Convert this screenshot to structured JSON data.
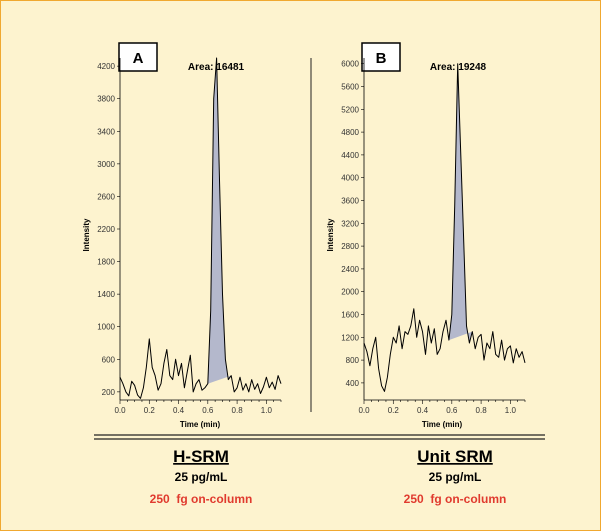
{
  "chart_data": [
    {
      "type": "line",
      "panel_label": "A",
      "annotation": "Area: 16481",
      "xlabel": "Time (min)",
      "ylabel": "Intensity",
      "xlim": [
        0,
        1.1
      ],
      "ylim": [
        100,
        4300
      ],
      "xticks": [
        "0.0",
        "0.2",
        "0.4",
        "0.6",
        "0.8",
        "1.0"
      ],
      "yticks": [
        "200",
        "600",
        "1000",
        "1400",
        "1800",
        "2200",
        "2600",
        "3000",
        "3400",
        "3800",
        "4200"
      ],
      "peak_color": "#b4b8cc",
      "x": [
        0.0,
        0.02,
        0.04,
        0.06,
        0.08,
        0.1,
        0.12,
        0.14,
        0.16,
        0.18,
        0.2,
        0.22,
        0.24,
        0.26,
        0.28,
        0.3,
        0.32,
        0.34,
        0.36,
        0.38,
        0.4,
        0.42,
        0.44,
        0.46,
        0.48,
        0.5,
        0.52,
        0.54,
        0.56,
        0.58,
        0.6,
        0.62,
        0.64,
        0.66,
        0.68,
        0.7,
        0.72,
        0.74,
        0.76,
        0.78,
        0.8,
        0.82,
        0.84,
        0.86,
        0.88,
        0.9,
        0.92,
        0.94,
        0.96,
        0.98,
        1.0,
        1.02,
        1.04,
        1.06,
        1.08,
        1.1
      ],
      "y": [
        380,
        300,
        200,
        150,
        330,
        280,
        160,
        120,
        250,
        500,
        850,
        500,
        400,
        220,
        300,
        550,
        720,
        400,
        350,
        600,
        400,
        550,
        250,
        450,
        650,
        200,
        300,
        350,
        220,
        250,
        300,
        1200,
        3800,
        4300,
        2800,
        1400,
        600,
        350,
        400,
        200,
        250,
        380,
        220,
        300,
        200,
        350,
        230,
        300,
        180,
        260,
        380,
        250,
        320,
        230,
        400,
        300
      ],
      "peak_range": [
        0.6,
        0.76
      ]
    },
    {
      "type": "line",
      "panel_label": "B",
      "annotation": "Area: 19248",
      "xlabel": "Time (min)",
      "ylabel": "Intensity",
      "xlim": [
        0,
        1.1
      ],
      "ylim": [
        100,
        6100
      ],
      "xticks": [
        "0.0",
        "0.2",
        "0.4",
        "0.6",
        "0.8",
        "1.0"
      ],
      "yticks": [
        "400",
        "800",
        "1200",
        "1600",
        "2000",
        "2400",
        "2800",
        "3200",
        "3600",
        "4000",
        "4400",
        "4800",
        "5200",
        "5600",
        "6000"
      ],
      "peak_color": "#b4b8cc",
      "x": [
        0.0,
        0.02,
        0.04,
        0.06,
        0.08,
        0.1,
        0.12,
        0.14,
        0.16,
        0.18,
        0.2,
        0.22,
        0.24,
        0.26,
        0.28,
        0.3,
        0.32,
        0.34,
        0.36,
        0.38,
        0.4,
        0.42,
        0.44,
        0.46,
        0.48,
        0.5,
        0.52,
        0.54,
        0.56,
        0.58,
        0.6,
        0.62,
        0.64,
        0.66,
        0.68,
        0.7,
        0.72,
        0.74,
        0.76,
        0.78,
        0.8,
        0.82,
        0.84,
        0.86,
        0.88,
        0.9,
        0.92,
        0.94,
        0.96,
        0.98,
        1.0,
        1.02,
        1.04,
        1.06,
        1.08,
        1.1
      ],
      "y": [
        1100,
        950,
        700,
        1000,
        1200,
        650,
        350,
        250,
        500,
        900,
        1200,
        1100,
        1400,
        1000,
        1300,
        1250,
        1400,
        1700,
        1200,
        1500,
        1300,
        900,
        1400,
        1100,
        1350,
        900,
        1000,
        1300,
        1500,
        1150,
        1600,
        3500,
        6000,
        4500,
        3000,
        1400,
        1100,
        1300,
        1000,
        1200,
        1250,
        800,
        1100,
        1000,
        1300,
        900,
        850,
        1150,
        800,
        1000,
        1050,
        750,
        1000,
        850,
        950,
        750
      ],
      "peak_range": [
        0.58,
        0.75
      ]
    }
  ],
  "captions": [
    {
      "title": "H-SRM",
      "concentration": "25 pg/mL",
      "on_column": "250  fg on-column"
    },
    {
      "title": "Unit SRM",
      "concentration": "25 pg/mL",
      "on_column": "250  fg on-column"
    }
  ],
  "colors": {
    "background": "#fdf3cf",
    "border": "#f0a830",
    "highlight_text": "#e03a2e"
  }
}
